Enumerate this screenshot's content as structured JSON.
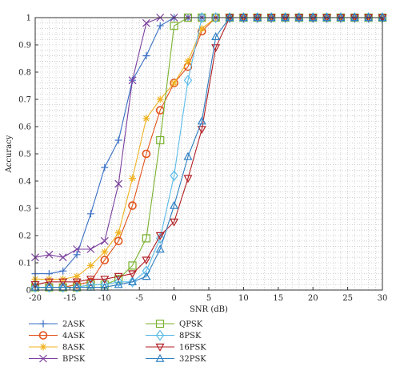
{
  "chart_data": {
    "type": "line",
    "xlabel": "SNR (dB)",
    "ylabel": "Accuracy",
    "xlim": [
      -20,
      30
    ],
    "ylim": [
      0,
      1
    ],
    "xticks": [
      -20,
      -15,
      -10,
      -5,
      0,
      5,
      10,
      15,
      20,
      25,
      30
    ],
    "yticks": [
      0,
      0.1,
      0.2,
      0.3,
      0.4,
      0.5,
      0.6,
      0.7,
      0.8,
      0.9,
      1
    ],
    "grid": true,
    "legend_position": "bottom",
    "x": [
      -20,
      -18,
      -16,
      -14,
      -12,
      -10,
      -8,
      -6,
      -4,
      -2,
      0,
      2,
      4,
      6,
      8,
      10,
      12,
      14,
      16,
      18,
      20,
      22,
      24,
      26,
      28,
      30
    ],
    "series": [
      {
        "name": "2ASK",
        "color": "#3a6fc4",
        "marker": "plus",
        "values": [
          0.06,
          0.06,
          0.07,
          0.13,
          0.28,
          0.45,
          0.55,
          0.77,
          0.86,
          0.97,
          1,
          1,
          1,
          1,
          1,
          1,
          1,
          1,
          1,
          1,
          1,
          1,
          1,
          1,
          1,
          1
        ]
      },
      {
        "name": "4ASK",
        "color": "#e2541c",
        "marker": "circle",
        "values": [
          0.01,
          0.01,
          0.01,
          0.02,
          0.03,
          0.11,
          0.18,
          0.31,
          0.5,
          0.66,
          0.76,
          0.82,
          0.95,
          1,
          1,
          1,
          1,
          1,
          1,
          1,
          1,
          1,
          1,
          1,
          1,
          1
        ]
      },
      {
        "name": "8ASK",
        "color": "#f0b323",
        "marker": "star",
        "values": [
          0.04,
          0.04,
          0.04,
          0.05,
          0.09,
          0.14,
          0.21,
          0.41,
          0.63,
          0.7,
          0.76,
          0.84,
          0.96,
          1,
          1,
          1,
          1,
          1,
          1,
          1,
          1,
          1,
          1,
          1,
          1,
          1
        ]
      },
      {
        "name": "BPSK",
        "color": "#7b3f9e",
        "marker": "x",
        "values": [
          0.12,
          0.13,
          0.12,
          0.15,
          0.15,
          0.18,
          0.39,
          0.77,
          0.98,
          1,
          1,
          1,
          1,
          1,
          1,
          1,
          1,
          1,
          1,
          1,
          1,
          1,
          1,
          1,
          1,
          1
        ]
      },
      {
        "name": "QPSK",
        "color": "#7ab32f",
        "marker": "square",
        "values": [
          0.01,
          0.01,
          0.01,
          0.01,
          0.02,
          0.02,
          0.04,
          0.09,
          0.19,
          0.55,
          0.97,
          1,
          1,
          1,
          1,
          1,
          1,
          1,
          1,
          1,
          1,
          1,
          1,
          1,
          1,
          1
        ]
      },
      {
        "name": "8PSK",
        "color": "#5bbbe8",
        "marker": "diamond",
        "values": [
          0.01,
          0.01,
          0.01,
          0.01,
          0.02,
          0.02,
          0.03,
          0.03,
          0.07,
          0.19,
          0.42,
          0.77,
          1,
          1,
          1,
          1,
          1,
          1,
          1,
          1,
          1,
          1,
          1,
          1,
          1,
          1
        ]
      },
      {
        "name": "16PSK",
        "color": "#b11f24",
        "marker": "triangle-down",
        "values": [
          0.02,
          0.03,
          0.03,
          0.03,
          0.04,
          0.04,
          0.05,
          0.06,
          0.11,
          0.2,
          0.25,
          0.41,
          0.59,
          0.89,
          1,
          1,
          1,
          1,
          1,
          1,
          1,
          1,
          1,
          1,
          1,
          1
        ]
      },
      {
        "name": "32PSK",
        "color": "#2f7fc1",
        "marker": "triangle-up",
        "values": [
          0.01,
          0.01,
          0.01,
          0.01,
          0.01,
          0.01,
          0.02,
          0.03,
          0.05,
          0.15,
          0.31,
          0.49,
          0.62,
          0.93,
          1,
          1,
          1,
          1,
          1,
          1,
          1,
          1,
          1,
          1,
          1,
          1
        ]
      }
    ]
  }
}
